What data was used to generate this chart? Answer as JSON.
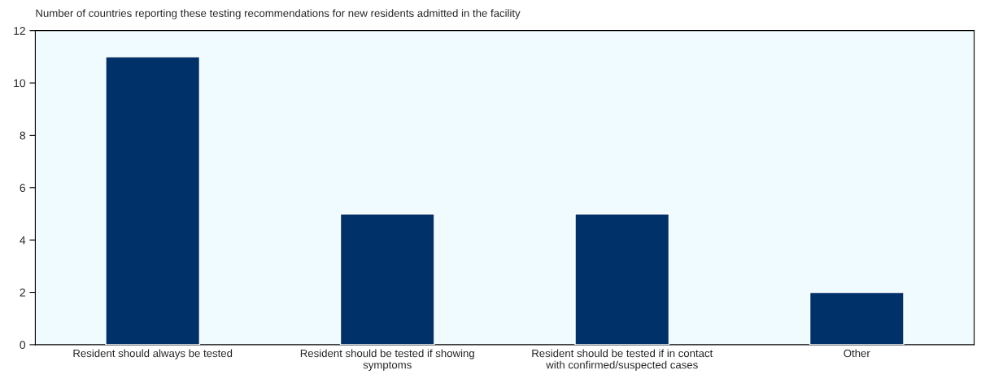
{
  "chart_data": {
    "type": "bar",
    "title": "Number of countries reporting these testing recommendations for new residents admitted in the facility",
    "categories": [
      "Resident should always be tested",
      "Resident should be tested if showing\nsymptoms",
      "Resident should be tested if in contact\nwith confirmed/suspected cases",
      "Other"
    ],
    "values": [
      11,
      5,
      5,
      2
    ],
    "color": "#003269",
    "ylim": [
      0,
      12
    ],
    "yticks": [
      0,
      2,
      4,
      6,
      8,
      10,
      12
    ],
    "grid": false
  }
}
